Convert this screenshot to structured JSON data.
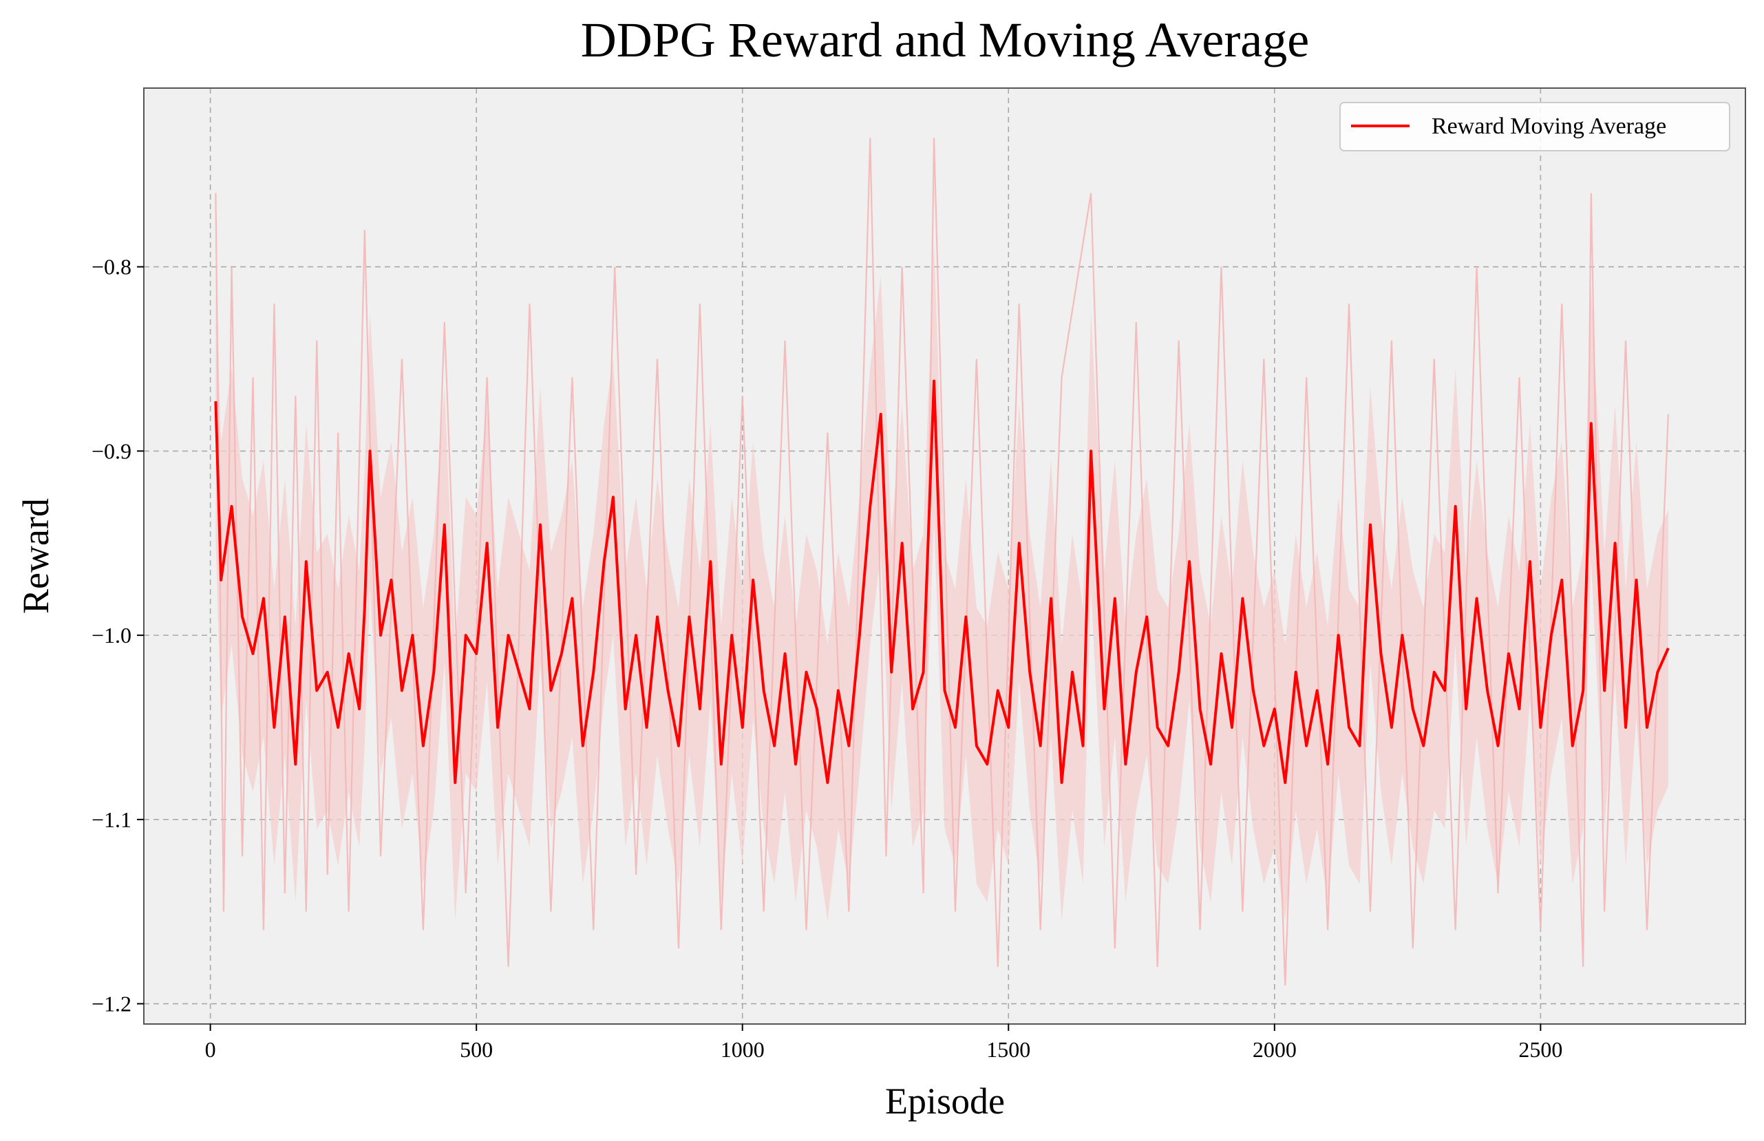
{
  "chart_data": {
    "type": "line",
    "title": "DDPG Reward and Moving Average",
    "xlabel": "Episode",
    "ylabel": "Reward",
    "xlim": [
      -125,
      2885
    ],
    "ylim": [
      -1.211,
      -0.703
    ],
    "x_ticks": [
      0,
      500,
      1000,
      1500,
      2000,
      2500
    ],
    "x_tick_labels": [
      "0",
      "500",
      "1000",
      "1500",
      "2000",
      "2500"
    ],
    "y_ticks": [
      -0.8,
      -0.9,
      -1.0,
      -1.1,
      -1.2
    ],
    "y_tick_labels": [
      "−0.8",
      "−0.9",
      "−1.0",
      "−1.1",
      "−1.2"
    ],
    "grid": true,
    "legend": {
      "position": "top-right",
      "entries": [
        "Reward Moving Average"
      ]
    },
    "colors": {
      "moving_average": "#ff0000",
      "raw_reward": "#f4b6b6",
      "band": "#f6d0d0",
      "plot_bg": "#f0f0f0"
    },
    "series": [
      {
        "name": "Reward Moving Average",
        "x": [
          10,
          20,
          40,
          60,
          80,
          100,
          120,
          140,
          160,
          180,
          200,
          220,
          240,
          260,
          280,
          290,
          300,
          320,
          340,
          360,
          380,
          400,
          420,
          440,
          460,
          480,
          500,
          520,
          540,
          560,
          580,
          600,
          620,
          640,
          660,
          680,
          700,
          720,
          740,
          757,
          780,
          800,
          820,
          840,
          860,
          880,
          900,
          920,
          940,
          960,
          980,
          1000,
          1020,
          1040,
          1060,
          1080,
          1100,
          1120,
          1140,
          1160,
          1180,
          1200,
          1220,
          1240,
          1260,
          1280,
          1300,
          1320,
          1340,
          1360,
          1380,
          1400,
          1420,
          1440,
          1460,
          1480,
          1500,
          1520,
          1540,
          1560,
          1580,
          1600,
          1620,
          1640,
          1655,
          1680,
          1700,
          1720,
          1740,
          1760,
          1780,
          1800,
          1820,
          1840,
          1860,
          1880,
          1900,
          1920,
          1940,
          1960,
          1980,
          2000,
          2020,
          2040,
          2060,
          2080,
          2100,
          2120,
          2140,
          2160,
          2180,
          2200,
          2220,
          2240,
          2260,
          2280,
          2300,
          2320,
          2340,
          2360,
          2380,
          2400,
          2420,
          2440,
          2460,
          2480,
          2500,
          2520,
          2540,
          2560,
          2580,
          2595,
          2620,
          2640,
          2660,
          2680,
          2700,
          2720,
          2740
        ],
        "values": [
          -0.873,
          -0.97,
          -0.93,
          -0.99,
          -1.01,
          -0.98,
          -1.05,
          -0.99,
          -1.07,
          -0.96,
          -1.03,
          -1.02,
          -1.05,
          -1.01,
          -1.04,
          -0.985,
          -0.9,
          -1.0,
          -0.97,
          -1.03,
          -1.0,
          -1.06,
          -1.02,
          -0.94,
          -1.08,
          -1.0,
          -1.01,
          -0.95,
          -1.05,
          -1.0,
          -1.02,
          -1.04,
          -0.94,
          -1.03,
          -1.01,
          -0.98,
          -1.06,
          -1.02,
          -0.96,
          -0.925,
          -1.04,
          -1.0,
          -1.05,
          -0.99,
          -1.03,
          -1.06,
          -0.99,
          -1.04,
          -0.96,
          -1.07,
          -1.0,
          -1.05,
          -0.97,
          -1.03,
          -1.06,
          -1.01,
          -1.07,
          -1.02,
          -1.04,
          -1.08,
          -1.03,
          -1.06,
          -1.0,
          -0.93,
          -0.88,
          -1.02,
          -0.95,
          -1.04,
          -1.02,
          -0.862,
          -1.03,
          -1.05,
          -0.99,
          -1.06,
          -1.07,
          -1.03,
          -1.05,
          -0.95,
          -1.02,
          -1.06,
          -0.98,
          -1.08,
          -1.02,
          -1.06,
          -0.9,
          -1.04,
          -0.98,
          -1.07,
          -1.02,
          -0.99,
          -1.05,
          -1.06,
          -1.02,
          -0.96,
          -1.04,
          -1.07,
          -1.01,
          -1.05,
          -0.98,
          -1.03,
          -1.06,
          -1.04,
          -1.08,
          -1.02,
          -1.06,
          -1.03,
          -1.07,
          -1.0,
          -1.05,
          -1.06,
          -0.94,
          -1.01,
          -1.05,
          -1.0,
          -1.04,
          -1.06,
          -1.02,
          -1.03,
          -0.93,
          -1.04,
          -0.98,
          -1.03,
          -1.06,
          -1.01,
          -1.04,
          -0.96,
          -1.05,
          -1.0,
          -0.97,
          -1.06,
          -1.03,
          -0.885,
          -1.03,
          -0.95,
          -1.05,
          -0.97,
          -1.05,
          -1.02,
          -1.007
        ]
      },
      {
        "name": "",
        "x": [
          10,
          25,
          40,
          60,
          80,
          100,
          120,
          140,
          160,
          180,
          200,
          220,
          240,
          260,
          290,
          320,
          360,
          400,
          440,
          480,
          520,
          560,
          600,
          640,
          680,
          720,
          760,
          800,
          840,
          880,
          920,
          960,
          1000,
          1040,
          1080,
          1120,
          1160,
          1200,
          1240,
          1270,
          1300,
          1340,
          1360,
          1400,
          1440,
          1480,
          1520,
          1560,
          1600,
          1655,
          1700,
          1740,
          1780,
          1820,
          1860,
          1900,
          1940,
          1980,
          2020,
          2060,
          2100,
          2140,
          2180,
          2220,
          2260,
          2300,
          2340,
          2380,
          2420,
          2460,
          2500,
          2540,
          2580,
          2595,
          2620,
          2660,
          2700,
          2740
        ],
        "values": [
          -0.76,
          -1.15,
          -0.8,
          -1.12,
          -0.86,
          -1.16,
          -0.82,
          -1.14,
          -0.87,
          -1.15,
          -0.84,
          -1.13,
          -0.89,
          -1.15,
          -0.78,
          -1.12,
          -0.85,
          -1.16,
          -0.83,
          -1.14,
          -0.86,
          -1.18,
          -0.82,
          -1.15,
          -0.86,
          -1.16,
          -0.8,
          -1.13,
          -0.85,
          -1.17,
          -0.82,
          -1.16,
          -0.87,
          -1.15,
          -0.84,
          -1.16,
          -0.89,
          -1.15,
          -0.73,
          -1.12,
          -0.8,
          -1.14,
          -0.73,
          -1.15,
          -0.85,
          -1.18,
          -0.82,
          -1.16,
          -0.86,
          -0.76,
          -1.17,
          -0.83,
          -1.18,
          -0.84,
          -1.16,
          -0.8,
          -1.15,
          -0.85,
          -1.19,
          -0.86,
          -1.16,
          -0.82,
          -1.15,
          -0.84,
          -1.17,
          -0.85,
          -1.16,
          -0.8,
          -1.14,
          -0.86,
          -1.16,
          -0.82,
          -1.18,
          -0.76,
          -1.15,
          -0.84,
          -1.16,
          -0.88
        ]
      }
    ]
  }
}
